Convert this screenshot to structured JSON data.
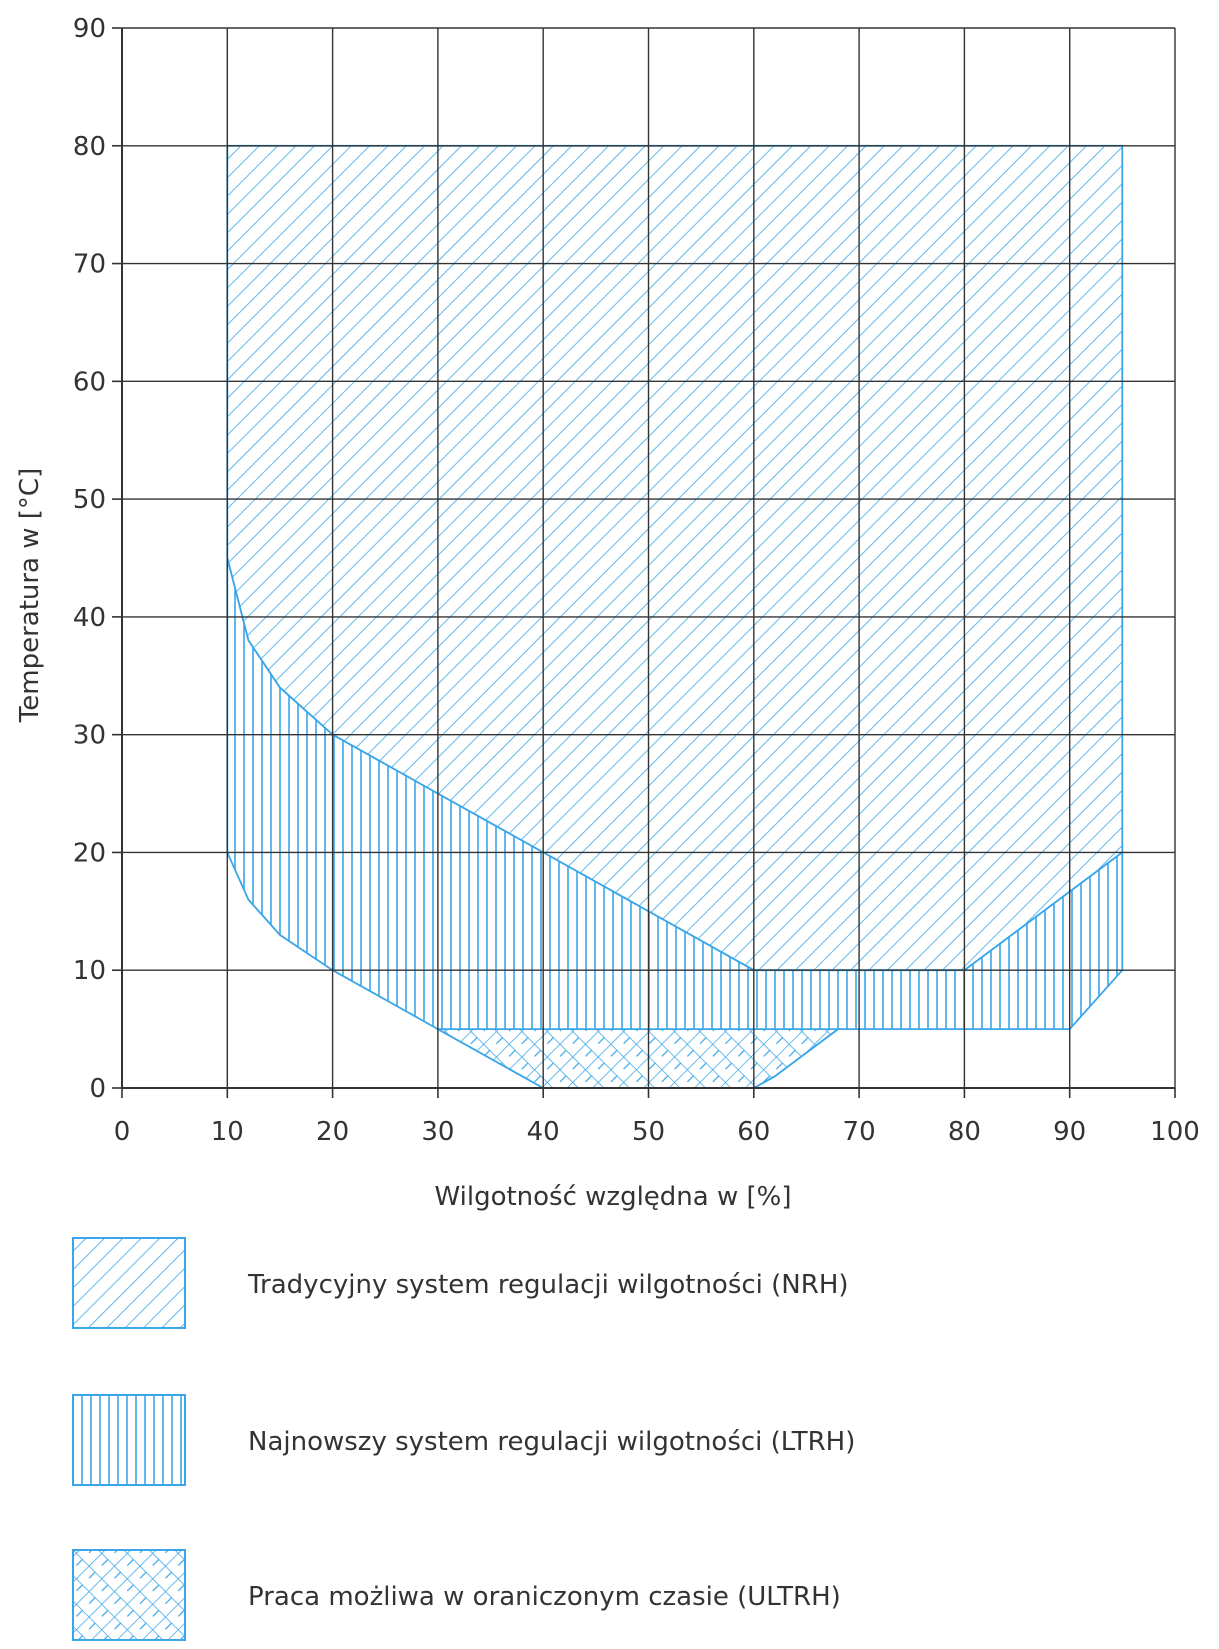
{
  "chart_data": {
    "type": "area",
    "xlabel": "Wilgotność względna w [%]",
    "ylabel": "Temperatura w [°C]",
    "xlim": [
      0,
      100
    ],
    "ylim": [
      0,
      90
    ],
    "xticks": [
      "0",
      "10",
      "20",
      "30",
      "40",
      "50",
      "60",
      "70",
      "80",
      "90",
      "100"
    ],
    "yticks": [
      "0",
      "10",
      "20",
      "30",
      "40",
      "50",
      "60",
      "70",
      "80",
      "90"
    ],
    "grid": true,
    "legend_position": "bottom",
    "colors": {
      "region": "#3aa6e8",
      "grid": "#333333"
    },
    "series": [
      {
        "name": "Tradycyjny system regulacji wilgotności (NRH)",
        "pattern": "diagonal-hatch",
        "points": [
          [
            10,
            80
          ],
          [
            95,
            80
          ],
          [
            95,
            20
          ],
          [
            80,
            10
          ],
          [
            60,
            10
          ],
          [
            40,
            20
          ],
          [
            30,
            25
          ],
          [
            20,
            30
          ],
          [
            15,
            34
          ],
          [
            12,
            38
          ],
          [
            10,
            45
          ]
        ]
      },
      {
        "name": "Najnowszy system regulacji wilgotności (LTRH)",
        "pattern": "vertical-hatch",
        "points": [
          [
            10,
            45
          ],
          [
            12,
            38
          ],
          [
            15,
            34
          ],
          [
            20,
            30
          ],
          [
            30,
            25
          ],
          [
            40,
            20
          ],
          [
            60,
            10
          ],
          [
            80,
            10
          ],
          [
            95,
            20
          ],
          [
            95,
            10
          ],
          [
            90,
            5
          ],
          [
            70,
            5
          ],
          [
            68,
            5
          ],
          [
            62,
            1
          ],
          [
            60,
            0
          ],
          [
            40,
            0
          ],
          [
            30,
            5
          ],
          [
            20,
            10
          ],
          [
            15,
            13
          ],
          [
            12,
            16
          ],
          [
            10,
            20
          ]
        ]
      },
      {
        "name": "Praca możliwa w oraniczonym czasie (ULTRH)",
        "pattern": "cross-hatch",
        "points": [
          [
            30,
            5
          ],
          [
            68,
            5
          ],
          [
            62,
            1
          ],
          [
            60,
            0
          ],
          [
            40,
            0
          ]
        ]
      }
    ]
  }
}
